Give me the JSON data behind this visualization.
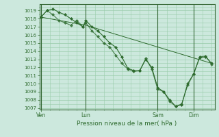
{
  "title": "",
  "xlabel": "Pression niveau de la mer( hPa )",
  "ylabel": "",
  "bg_color": "#cce8dd",
  "plot_bg_color": "#cce8dd",
  "line_color": "#2d6a2d",
  "marker_color": "#2d6a2d",
  "grid_color": "#99ccaa",
  "ylim": [
    1006.8,
    1019.8
  ],
  "yticks": [
    1007,
    1008,
    1009,
    1010,
    1011,
    1012,
    1013,
    1014,
    1015,
    1016,
    1017,
    1018,
    1019
  ],
  "xtick_labels": [
    "Ven",
    "Lun",
    "Sam",
    "Dim"
  ],
  "xtick_positions": [
    0,
    30,
    78,
    102
  ],
  "vline_positions": [
    0,
    30,
    78,
    102
  ],
  "xlim": [
    -1,
    116
  ],
  "series1": {
    "x": [
      0,
      4,
      8,
      12,
      16,
      20,
      24,
      28,
      30,
      34,
      38,
      42,
      46,
      50,
      54,
      58,
      62,
      66,
      70,
      74,
      78,
      82,
      86,
      90,
      94,
      98,
      102,
      106,
      110,
      114
    ],
    "y": [
      1018.2,
      1019.0,
      1019.2,
      1018.8,
      1018.5,
      1018.0,
      1017.5,
      1017.0,
      1017.8,
      1017.0,
      1016.5,
      1015.8,
      1015.0,
      1014.5,
      1013.3,
      1011.9,
      1011.6,
      1011.6,
      1013.0,
      1012.0,
      1009.5,
      1009.0,
      1008.0,
      1007.2,
      1007.4,
      1010.0,
      1011.2,
      1013.2,
      1013.3,
      1012.5
    ]
  },
  "series2": {
    "x": [
      0,
      4,
      8,
      12,
      16,
      20,
      24,
      28,
      30,
      34,
      38,
      42,
      46,
      50,
      54,
      58,
      62,
      66,
      70,
      74,
      78,
      82,
      86,
      90,
      94,
      98,
      102,
      106,
      110,
      114
    ],
    "y": [
      1018.2,
      1019.0,
      1018.5,
      1017.8,
      1017.5,
      1017.2,
      1017.8,
      1017.0,
      1017.5,
      1016.5,
      1015.8,
      1015.0,
      1014.5,
      1013.5,
      1012.5,
      1011.8,
      1011.5,
      1011.6,
      1013.1,
      1011.8,
      1009.3,
      1009.0,
      1007.8,
      1007.2,
      1007.5,
      1009.8,
      1011.2,
      1013.3,
      1013.4,
      1012.4
    ]
  },
  "series3": {
    "x": [
      0,
      30,
      114
    ],
    "y": [
      1018.2,
      1017.2,
      1012.5
    ]
  }
}
